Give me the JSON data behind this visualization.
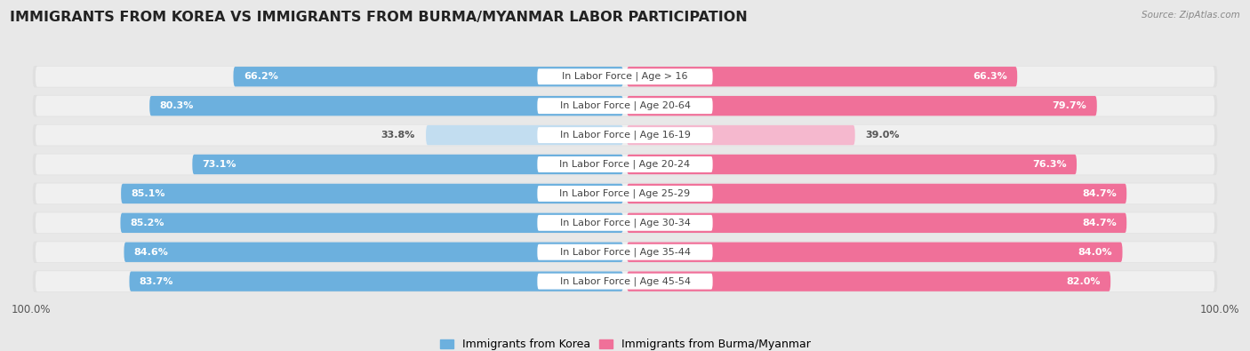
{
  "title": "IMMIGRANTS FROM KOREA VS IMMIGRANTS FROM BURMA/MYANMAR LABOR PARTICIPATION",
  "source": "Source: ZipAtlas.com",
  "categories": [
    "In Labor Force | Age > 16",
    "In Labor Force | Age 20-64",
    "In Labor Force | Age 16-19",
    "In Labor Force | Age 20-24",
    "In Labor Force | Age 25-29",
    "In Labor Force | Age 30-34",
    "In Labor Force | Age 35-44",
    "In Labor Force | Age 45-54"
  ],
  "korea_values": [
    66.2,
    80.3,
    33.8,
    73.1,
    85.1,
    85.2,
    84.6,
    83.7
  ],
  "burma_values": [
    66.3,
    79.7,
    39.0,
    76.3,
    84.7,
    84.7,
    84.0,
    82.0
  ],
  "korea_color": "#6cb0de",
  "korea_color_light": "#c2ddf0",
  "burma_color": "#f07099",
  "burma_color_light": "#f5b8ce",
  "label_korea": "Immigrants from Korea",
  "label_burma": "Immigrants from Burma/Myanmar",
  "background_color": "#e8e8e8",
  "row_bg_color": "#d8d8d8",
  "bar_bg_color": "#f0f0f0",
  "max_value": 100.0,
  "title_fontsize": 11.5,
  "label_fontsize": 8.0,
  "value_fontsize": 8.0
}
